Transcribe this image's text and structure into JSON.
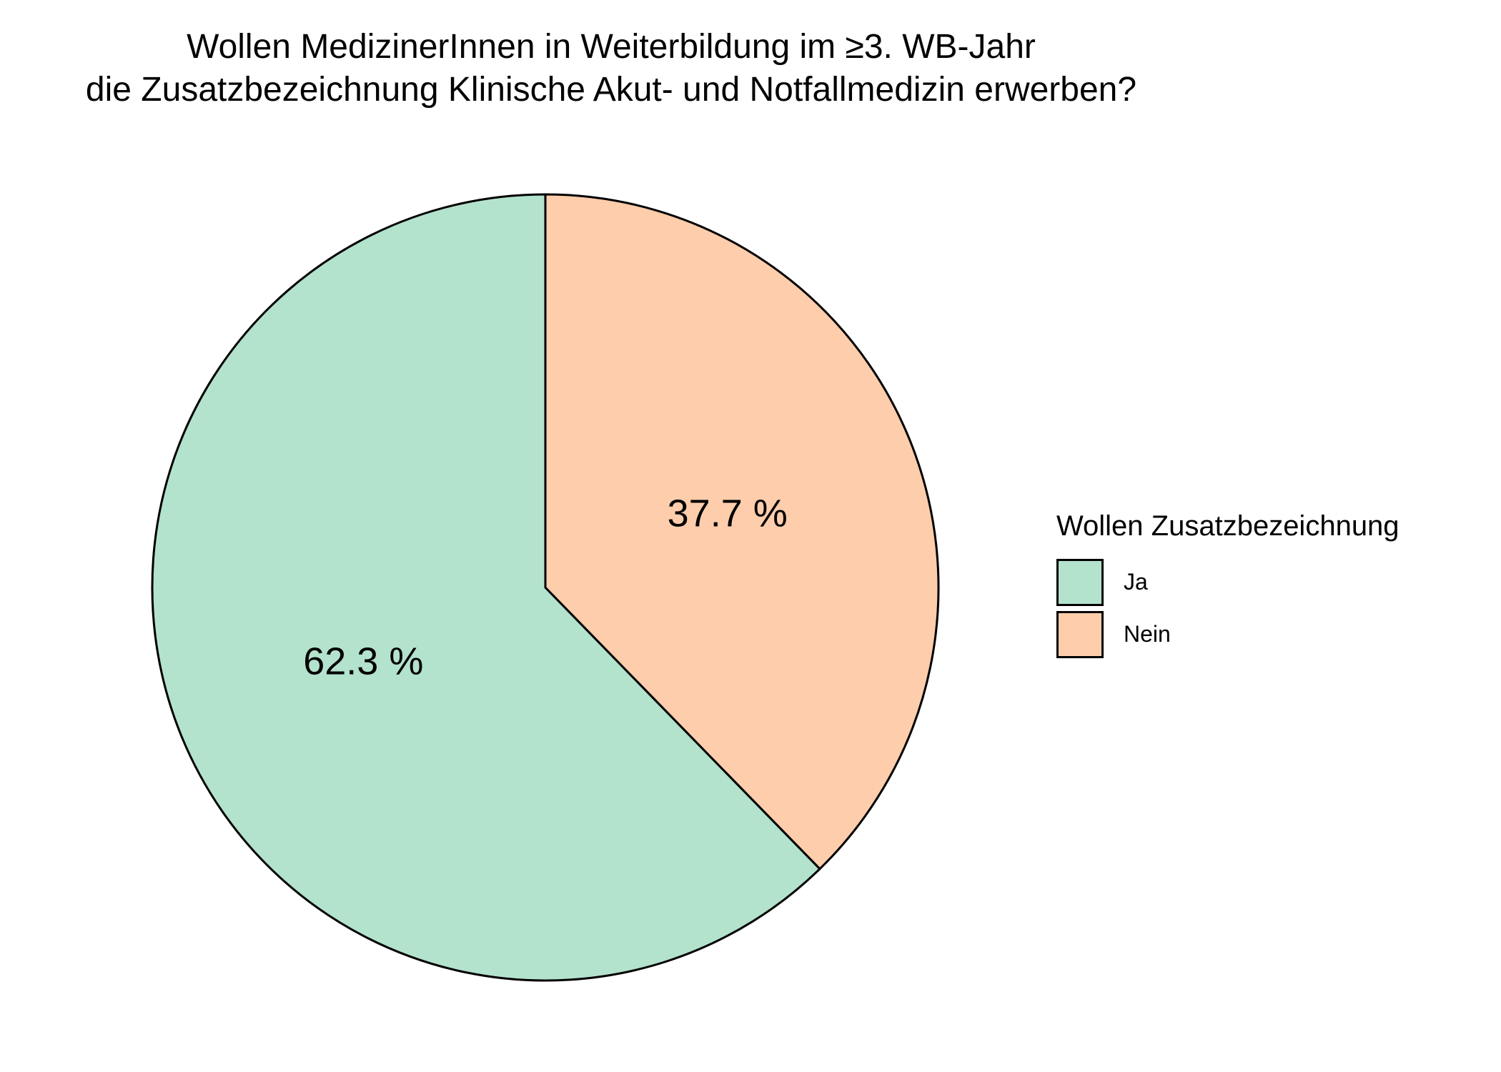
{
  "chart_data": {
    "type": "pie",
    "title_lines": [
      "Wollen MedizinerInnen in Weiterbildung im ≥3. WB-Jahr",
      "die Zusatzbezeichnung Klinische Akut- und Notfallmedizin erwerben?"
    ],
    "slices": [
      {
        "label": "Ja",
        "value": 62.3,
        "display": "62.3 %",
        "color": "#B3E2CD"
      },
      {
        "label": "Nein",
        "value": 37.7,
        "display": "37.7 %",
        "color": "#FDCDAC"
      }
    ],
    "legend": {
      "title": "Wollen Zusatzbezeichnung",
      "placement": "right"
    },
    "start": "top",
    "direction": "counterclockwise"
  }
}
